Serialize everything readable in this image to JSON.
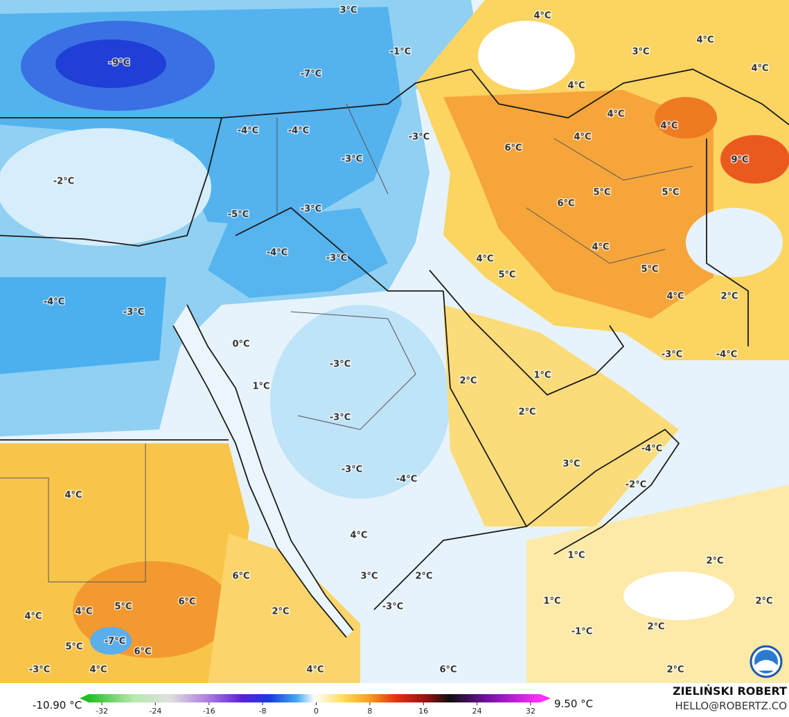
{
  "map": {
    "labels": [
      "3°C",
      "4°C",
      "4°C",
      "3°C",
      "4°C",
      "4°C",
      "-9°C",
      "-7°C",
      "-1°C",
      "-4°C",
      "-4°C",
      "-3°C",
      "4°C",
      "4°C",
      "4°C",
      "6°C",
      "9°C",
      "-2°C",
      "-3°C",
      "-3°C",
      "-5°C",
      "5°C",
      "5°C",
      "6°C",
      "-4°C",
      "-3°C",
      "4°C",
      "4°C",
      "5°C",
      "5°C",
      "4°C",
      "2°C",
      "-4°C",
      "-3°C",
      "0°C",
      "-3°C",
      "2°C",
      "1°C",
      "-3°C",
      "-4°C",
      "1°C",
      "2°C",
      "-3°C",
      "-4°C",
      "3°C",
      "-2°C",
      "-3°C",
      "-4°C",
      "4°C",
      "4°C",
      "1°C",
      "2°C",
      "6°C",
      "3°C",
      "2°C",
      "1°C",
      "2°C",
      "6°C",
      "5°C",
      "4°C",
      "4°C",
      "2°C",
      "-3°C",
      "-7°C",
      "5°C",
      "6°C",
      "-1°C",
      "2°C",
      "-3°C",
      "4°C",
      "4°C",
      "6°C",
      "2°C"
    ],
    "colorbar": {
      "min_label": "-10.90 °C",
      "max_label": "9.50 °C",
      "ticks": [
        -32,
        -24,
        -16,
        -8,
        0,
        8,
        16,
        24,
        32
      ]
    },
    "credit": {
      "name": "ZIELIŃSKI ROBERT",
      "contact": "HELLO@ROBERTZ.CO"
    }
  }
}
